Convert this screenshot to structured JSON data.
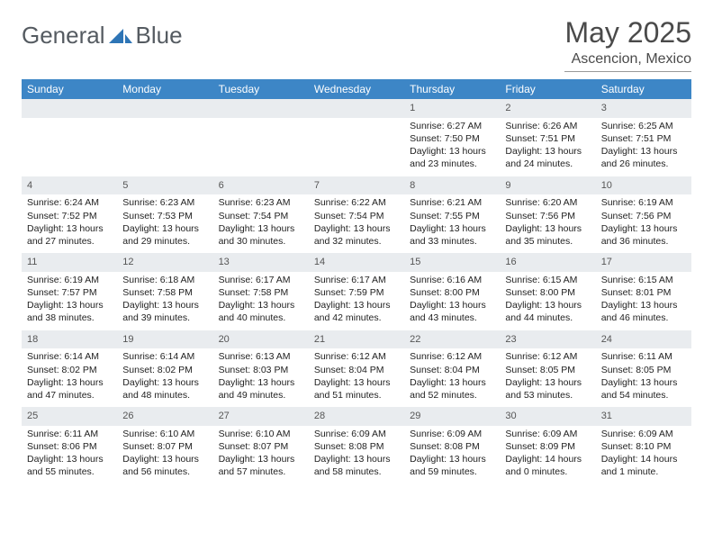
{
  "brand": {
    "part1": "General",
    "part2": "Blue"
  },
  "title": "May 2025",
  "location": "Ascencion, Mexico",
  "colors": {
    "header_bg": "#3d86c6",
    "header_fg": "#ffffff",
    "daynum_bg": "#e9ecef",
    "text": "#333333",
    "logo_text": "#555b61",
    "logo_shape": "#2e75b6"
  },
  "weekdays": [
    "Sunday",
    "Monday",
    "Tuesday",
    "Wednesday",
    "Thursday",
    "Friday",
    "Saturday"
  ],
  "weeks": [
    [
      null,
      null,
      null,
      null,
      {
        "n": "1",
        "sr": "Sunrise: 6:27 AM",
        "ss": "Sunset: 7:50 PM",
        "d1": "Daylight: 13 hours",
        "d2": "and 23 minutes."
      },
      {
        "n": "2",
        "sr": "Sunrise: 6:26 AM",
        "ss": "Sunset: 7:51 PM",
        "d1": "Daylight: 13 hours",
        "d2": "and 24 minutes."
      },
      {
        "n": "3",
        "sr": "Sunrise: 6:25 AM",
        "ss": "Sunset: 7:51 PM",
        "d1": "Daylight: 13 hours",
        "d2": "and 26 minutes."
      }
    ],
    [
      {
        "n": "4",
        "sr": "Sunrise: 6:24 AM",
        "ss": "Sunset: 7:52 PM",
        "d1": "Daylight: 13 hours",
        "d2": "and 27 minutes."
      },
      {
        "n": "5",
        "sr": "Sunrise: 6:23 AM",
        "ss": "Sunset: 7:53 PM",
        "d1": "Daylight: 13 hours",
        "d2": "and 29 minutes."
      },
      {
        "n": "6",
        "sr": "Sunrise: 6:23 AM",
        "ss": "Sunset: 7:54 PM",
        "d1": "Daylight: 13 hours",
        "d2": "and 30 minutes."
      },
      {
        "n": "7",
        "sr": "Sunrise: 6:22 AM",
        "ss": "Sunset: 7:54 PM",
        "d1": "Daylight: 13 hours",
        "d2": "and 32 minutes."
      },
      {
        "n": "8",
        "sr": "Sunrise: 6:21 AM",
        "ss": "Sunset: 7:55 PM",
        "d1": "Daylight: 13 hours",
        "d2": "and 33 minutes."
      },
      {
        "n": "9",
        "sr": "Sunrise: 6:20 AM",
        "ss": "Sunset: 7:56 PM",
        "d1": "Daylight: 13 hours",
        "d2": "and 35 minutes."
      },
      {
        "n": "10",
        "sr": "Sunrise: 6:19 AM",
        "ss": "Sunset: 7:56 PM",
        "d1": "Daylight: 13 hours",
        "d2": "and 36 minutes."
      }
    ],
    [
      {
        "n": "11",
        "sr": "Sunrise: 6:19 AM",
        "ss": "Sunset: 7:57 PM",
        "d1": "Daylight: 13 hours",
        "d2": "and 38 minutes."
      },
      {
        "n": "12",
        "sr": "Sunrise: 6:18 AM",
        "ss": "Sunset: 7:58 PM",
        "d1": "Daylight: 13 hours",
        "d2": "and 39 minutes."
      },
      {
        "n": "13",
        "sr": "Sunrise: 6:17 AM",
        "ss": "Sunset: 7:58 PM",
        "d1": "Daylight: 13 hours",
        "d2": "and 40 minutes."
      },
      {
        "n": "14",
        "sr": "Sunrise: 6:17 AM",
        "ss": "Sunset: 7:59 PM",
        "d1": "Daylight: 13 hours",
        "d2": "and 42 minutes."
      },
      {
        "n": "15",
        "sr": "Sunrise: 6:16 AM",
        "ss": "Sunset: 8:00 PM",
        "d1": "Daylight: 13 hours",
        "d2": "and 43 minutes."
      },
      {
        "n": "16",
        "sr": "Sunrise: 6:15 AM",
        "ss": "Sunset: 8:00 PM",
        "d1": "Daylight: 13 hours",
        "d2": "and 44 minutes."
      },
      {
        "n": "17",
        "sr": "Sunrise: 6:15 AM",
        "ss": "Sunset: 8:01 PM",
        "d1": "Daylight: 13 hours",
        "d2": "and 46 minutes."
      }
    ],
    [
      {
        "n": "18",
        "sr": "Sunrise: 6:14 AM",
        "ss": "Sunset: 8:02 PM",
        "d1": "Daylight: 13 hours",
        "d2": "and 47 minutes."
      },
      {
        "n": "19",
        "sr": "Sunrise: 6:14 AM",
        "ss": "Sunset: 8:02 PM",
        "d1": "Daylight: 13 hours",
        "d2": "and 48 minutes."
      },
      {
        "n": "20",
        "sr": "Sunrise: 6:13 AM",
        "ss": "Sunset: 8:03 PM",
        "d1": "Daylight: 13 hours",
        "d2": "and 49 minutes."
      },
      {
        "n": "21",
        "sr": "Sunrise: 6:12 AM",
        "ss": "Sunset: 8:04 PM",
        "d1": "Daylight: 13 hours",
        "d2": "and 51 minutes."
      },
      {
        "n": "22",
        "sr": "Sunrise: 6:12 AM",
        "ss": "Sunset: 8:04 PM",
        "d1": "Daylight: 13 hours",
        "d2": "and 52 minutes."
      },
      {
        "n": "23",
        "sr": "Sunrise: 6:12 AM",
        "ss": "Sunset: 8:05 PM",
        "d1": "Daylight: 13 hours",
        "d2": "and 53 minutes."
      },
      {
        "n": "24",
        "sr": "Sunrise: 6:11 AM",
        "ss": "Sunset: 8:05 PM",
        "d1": "Daylight: 13 hours",
        "d2": "and 54 minutes."
      }
    ],
    [
      {
        "n": "25",
        "sr": "Sunrise: 6:11 AM",
        "ss": "Sunset: 8:06 PM",
        "d1": "Daylight: 13 hours",
        "d2": "and 55 minutes."
      },
      {
        "n": "26",
        "sr": "Sunrise: 6:10 AM",
        "ss": "Sunset: 8:07 PM",
        "d1": "Daylight: 13 hours",
        "d2": "and 56 minutes."
      },
      {
        "n": "27",
        "sr": "Sunrise: 6:10 AM",
        "ss": "Sunset: 8:07 PM",
        "d1": "Daylight: 13 hours",
        "d2": "and 57 minutes."
      },
      {
        "n": "28",
        "sr": "Sunrise: 6:09 AM",
        "ss": "Sunset: 8:08 PM",
        "d1": "Daylight: 13 hours",
        "d2": "and 58 minutes."
      },
      {
        "n": "29",
        "sr": "Sunrise: 6:09 AM",
        "ss": "Sunset: 8:08 PM",
        "d1": "Daylight: 13 hours",
        "d2": "and 59 minutes."
      },
      {
        "n": "30",
        "sr": "Sunrise: 6:09 AM",
        "ss": "Sunset: 8:09 PM",
        "d1": "Daylight: 14 hours",
        "d2": "and 0 minutes."
      },
      {
        "n": "31",
        "sr": "Sunrise: 6:09 AM",
        "ss": "Sunset: 8:10 PM",
        "d1": "Daylight: 14 hours",
        "d2": "and 1 minute."
      }
    ]
  ]
}
